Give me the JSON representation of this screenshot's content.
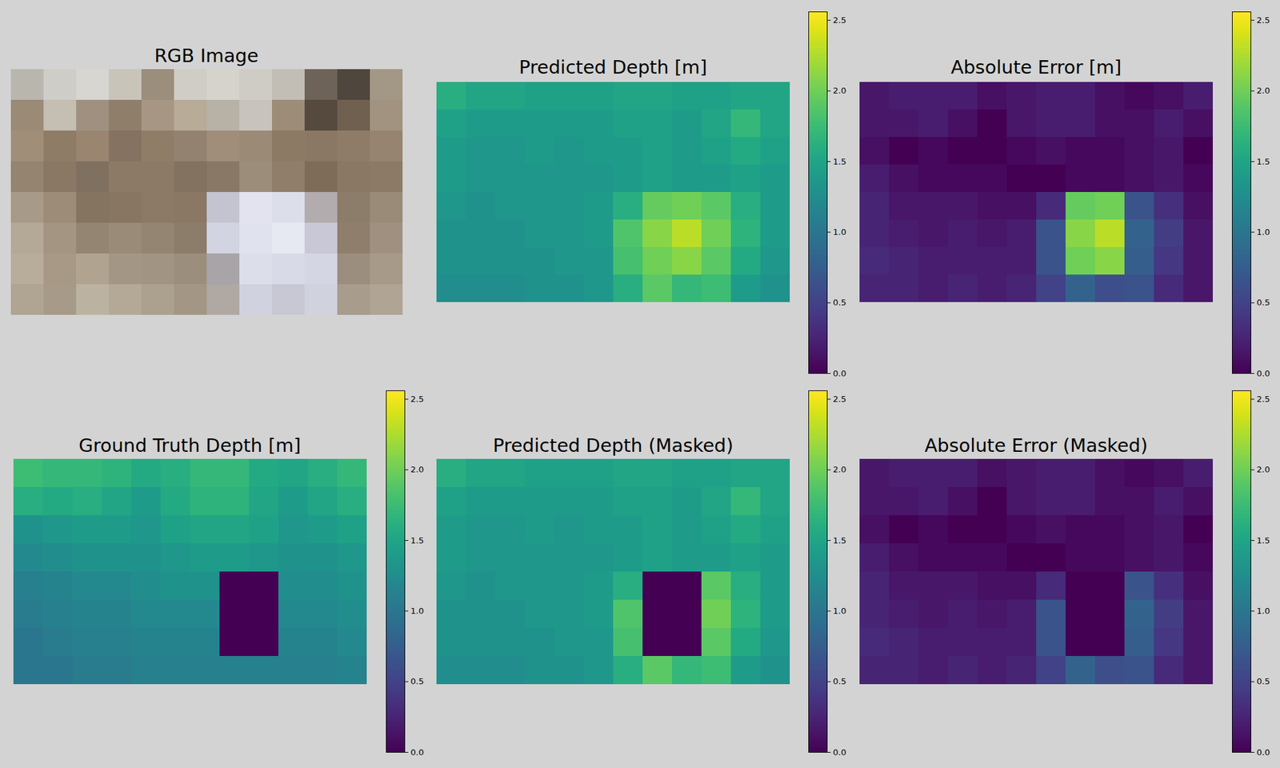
{
  "chart_data": [
    {
      "type": "image",
      "title": "RGB Image",
      "pixels": [
        [
          "#b9b6ae",
          "#cfcdc7",
          "#d8d6d0",
          "#c9c4ba",
          "#9c8e7c",
          "#d0cdc6",
          "#d5d3cc",
          "#cfccc5",
          "#c2beb6",
          "#6e6358",
          "#4f463d",
          "#a39886"
        ],
        [
          "#9a8a76",
          "#c4beb3",
          "#a09080",
          "#8e7e6a",
          "#a89684",
          "#b8ab98",
          "#b8b1a6",
          "#c8c4bd",
          "#9c8c78",
          "#56493e",
          "#6f6050",
          "#a29380"
        ],
        [
          "#a08e78",
          "#8e7c66",
          "#9a8670",
          "#857260",
          "#8f7d68",
          "#948270",
          "#a08e7a",
          "#9a8a76",
          "#8c7a64",
          "#8a7864",
          "#8e7c68",
          "#968470"
        ],
        [
          "#948470",
          "#8a7864",
          "#807060",
          "#8c7a66",
          "#8c7a66",
          "#847260",
          "#8a7866",
          "#9c8c7a",
          "#907e6a",
          "#7e6c58",
          "#8a7864",
          "#8c7a66"
        ],
        [
          "#a89a88",
          "#9c8c78",
          "#857460",
          "#887662",
          "#8c7a66",
          "#8a7864",
          "#c4c4d0",
          "#e2e3ee",
          "#dcdeea",
          "#b2acae",
          "#8c7c6a",
          "#9a8a78"
        ],
        [
          "#b4a896",
          "#a49482",
          "#948472",
          "#9a8a78",
          "#948472",
          "#8c7c6a",
          "#d2d4e2",
          "#e0e2ee",
          "#e6e8f2",
          "#c8c8d6",
          "#907e6c",
          "#a09080"
        ],
        [
          "#b8ac9a",
          "#a89886",
          "#b0a490",
          "#a49684",
          "#a29482",
          "#9c8e7c",
          "#a8a4a8",
          "#dcdeea",
          "#d8dae8",
          "#d4d6e4",
          "#9c8e7e",
          "#a89a88"
        ],
        [
          "#b0a492",
          "#a89a88",
          "#bcb2a2",
          "#b4a896",
          "#aca08e",
          "#a49684",
          "#b0a8a2",
          "#d0d2e0",
          "#c8c8d4",
          "#d0d2de",
          "#a89c8c",
          "#b0a494"
        ]
      ]
    },
    {
      "type": "heatmap",
      "title": "Predicted Depth [m]",
      "cells": [
        [
          1.6,
          1.5,
          1.5,
          1.45,
          1.45,
          1.45,
          1.5,
          1.5,
          1.45,
          1.45,
          1.5,
          1.5
        ],
        [
          1.45,
          1.4,
          1.4,
          1.4,
          1.4,
          1.4,
          1.45,
          1.45,
          1.4,
          1.5,
          1.7,
          1.5
        ],
        [
          1.4,
          1.35,
          1.35,
          1.4,
          1.35,
          1.4,
          1.4,
          1.45,
          1.4,
          1.45,
          1.55,
          1.45
        ],
        [
          1.4,
          1.35,
          1.35,
          1.35,
          1.35,
          1.35,
          1.4,
          1.45,
          1.4,
          1.4,
          1.45,
          1.4
        ],
        [
          1.35,
          1.3,
          1.35,
          1.35,
          1.35,
          1.4,
          1.6,
          1.95,
          2.0,
          1.9,
          1.6,
          1.4
        ],
        [
          1.3,
          1.3,
          1.3,
          1.35,
          1.35,
          1.4,
          1.85,
          2.1,
          2.3,
          2.0,
          1.65,
          1.4
        ],
        [
          1.3,
          1.3,
          1.3,
          1.3,
          1.35,
          1.35,
          1.8,
          2.0,
          2.1,
          1.9,
          1.55,
          1.35
        ],
        [
          1.25,
          1.25,
          1.25,
          1.3,
          1.3,
          1.35,
          1.6,
          1.9,
          1.7,
          1.75,
          1.4,
          1.3
        ]
      ],
      "colorbar": {
        "range": [
          0,
          2.56
        ],
        "ticks": [
          {
            "value": 0,
            "label": "0.0"
          },
          {
            "value": 0.5,
            "label": "0.5"
          },
          {
            "value": 1,
            "label": "1.0"
          },
          {
            "value": 1.5,
            "label": "1.5"
          },
          {
            "value": 2,
            "label": "2.0"
          },
          {
            "value": 2.5,
            "label": "2.5"
          }
        ]
      }
    },
    {
      "type": "heatmap",
      "title": "Absolute Error [m]",
      "cells": [
        [
          0.15,
          0.2,
          0.2,
          0.2,
          0.1,
          0.15,
          0.2,
          0.2,
          0.1,
          0.05,
          0.1,
          0.2
        ],
        [
          0.15,
          0.15,
          0.2,
          0.1,
          0.0,
          0.15,
          0.2,
          0.2,
          0.1,
          0.1,
          0.2,
          0.1
        ],
        [
          0.1,
          0.0,
          0.05,
          0.0,
          0.0,
          0.05,
          0.1,
          0.05,
          0.05,
          0.1,
          0.15,
          0.0
        ],
        [
          0.2,
          0.1,
          0.05,
          0.05,
          0.05,
          0.0,
          0.0,
          0.05,
          0.05,
          0.1,
          0.15,
          0.05
        ],
        [
          0.25,
          0.15,
          0.15,
          0.15,
          0.1,
          0.1,
          0.3,
          1.95,
          2.0,
          0.65,
          0.35,
          0.1
        ],
        [
          0.25,
          0.2,
          0.15,
          0.2,
          0.15,
          0.2,
          0.65,
          2.1,
          2.3,
          0.8,
          0.45,
          0.15
        ],
        [
          0.3,
          0.25,
          0.2,
          0.2,
          0.2,
          0.2,
          0.65,
          2.0,
          2.1,
          0.75,
          0.4,
          0.15
        ],
        [
          0.25,
          0.25,
          0.2,
          0.25,
          0.2,
          0.25,
          0.5,
          0.8,
          0.6,
          0.65,
          0.3,
          0.15
        ]
      ],
      "colorbar": {
        "range": [
          0,
          2.56
        ],
        "ticks": [
          {
            "value": 0,
            "label": "0.0"
          },
          {
            "value": 0.5,
            "label": "0.5"
          },
          {
            "value": 1,
            "label": "1.0"
          },
          {
            "value": 1.5,
            "label": "1.5"
          },
          {
            "value": 2,
            "label": "2.0"
          },
          {
            "value": 2.5,
            "label": "2.5"
          }
        ]
      }
    },
    {
      "type": "heatmap",
      "title": "Ground Truth Depth [m]",
      "cells": [
        [
          1.75,
          1.7,
          1.7,
          1.65,
          1.55,
          1.6,
          1.7,
          1.7,
          1.55,
          1.5,
          1.6,
          1.7
        ],
        [
          1.6,
          1.55,
          1.6,
          1.5,
          1.4,
          1.55,
          1.65,
          1.65,
          1.5,
          1.4,
          1.5,
          1.6
        ],
        [
          1.3,
          1.35,
          1.4,
          1.4,
          1.35,
          1.45,
          1.5,
          1.5,
          1.45,
          1.35,
          1.4,
          1.45
        ],
        [
          1.2,
          1.25,
          1.3,
          1.3,
          1.3,
          1.35,
          1.4,
          1.4,
          1.35,
          1.3,
          1.3,
          1.35
        ],
        [
          1.1,
          1.15,
          1.2,
          1.2,
          1.25,
          1.3,
          1.3,
          0,
          0,
          1.25,
          1.25,
          1.3
        ],
        [
          1.05,
          1.1,
          1.15,
          1.15,
          1.2,
          1.2,
          1.2,
          0,
          0,
          1.2,
          1.2,
          1.25
        ],
        [
          1.0,
          1.05,
          1.1,
          1.1,
          1.15,
          1.15,
          1.15,
          0,
          0,
          1.15,
          1.15,
          1.2
        ],
        [
          1.0,
          1.0,
          1.05,
          1.05,
          1.1,
          1.1,
          1.1,
          1.1,
          1.1,
          1.1,
          1.1,
          1.15
        ]
      ],
      "colorbar": {
        "range": [
          0,
          2.56
        ],
        "ticks": [
          {
            "value": 0,
            "label": "0.0"
          },
          {
            "value": 0.5,
            "label": "0.5"
          },
          {
            "value": 1,
            "label": "1.0"
          },
          {
            "value": 1.5,
            "label": "1.5"
          },
          {
            "value": 2,
            "label": "2.0"
          },
          {
            "value": 2.5,
            "label": "2.5"
          }
        ]
      }
    },
    {
      "type": "heatmap",
      "title": "Predicted Depth (Masked)",
      "cells": [
        [
          1.6,
          1.5,
          1.5,
          1.45,
          1.45,
          1.45,
          1.5,
          1.5,
          1.45,
          1.45,
          1.5,
          1.5
        ],
        [
          1.45,
          1.4,
          1.4,
          1.4,
          1.4,
          1.4,
          1.45,
          1.45,
          1.4,
          1.5,
          1.7,
          1.5
        ],
        [
          1.4,
          1.35,
          1.35,
          1.4,
          1.35,
          1.4,
          1.4,
          1.45,
          1.4,
          1.45,
          1.55,
          1.45
        ],
        [
          1.4,
          1.35,
          1.35,
          1.35,
          1.35,
          1.35,
          1.4,
          1.45,
          1.4,
          1.4,
          1.45,
          1.4
        ],
        [
          1.35,
          1.3,
          1.35,
          1.35,
          1.35,
          1.4,
          1.6,
          0,
          0,
          1.9,
          1.6,
          1.4
        ],
        [
          1.3,
          1.3,
          1.3,
          1.35,
          1.35,
          1.4,
          1.85,
          0,
          0,
          2.0,
          1.65,
          1.4
        ],
        [
          1.3,
          1.3,
          1.3,
          1.3,
          1.35,
          1.35,
          1.8,
          0,
          0,
          1.9,
          1.55,
          1.35
        ],
        [
          1.25,
          1.25,
          1.25,
          1.3,
          1.3,
          1.35,
          1.6,
          1.9,
          1.7,
          1.75,
          1.4,
          1.3
        ]
      ],
      "colorbar": {
        "range": [
          0,
          2.56
        ],
        "ticks": [
          {
            "value": 0,
            "label": "0.0"
          },
          {
            "value": 0.5,
            "label": "0.5"
          },
          {
            "value": 1,
            "label": "1.0"
          },
          {
            "value": 1.5,
            "label": "1.5"
          },
          {
            "value": 2,
            "label": "2.0"
          },
          {
            "value": 2.5,
            "label": "2.5"
          }
        ]
      }
    },
    {
      "type": "heatmap",
      "title": "Absolute Error (Masked)",
      "cells": [
        [
          0.15,
          0.2,
          0.2,
          0.2,
          0.1,
          0.15,
          0.2,
          0.2,
          0.1,
          0.05,
          0.1,
          0.2
        ],
        [
          0.15,
          0.15,
          0.2,
          0.1,
          0.0,
          0.15,
          0.2,
          0.2,
          0.1,
          0.1,
          0.2,
          0.1
        ],
        [
          0.1,
          0.0,
          0.05,
          0.0,
          0.0,
          0.05,
          0.1,
          0.05,
          0.05,
          0.1,
          0.15,
          0.0
        ],
        [
          0.2,
          0.1,
          0.05,
          0.05,
          0.05,
          0.0,
          0.0,
          0.05,
          0.05,
          0.1,
          0.15,
          0.05
        ],
        [
          0.25,
          0.15,
          0.15,
          0.15,
          0.1,
          0.1,
          0.3,
          0,
          0,
          0.65,
          0.35,
          0.1
        ],
        [
          0.25,
          0.2,
          0.15,
          0.2,
          0.15,
          0.2,
          0.65,
          0,
          0,
          0.8,
          0.45,
          0.15
        ],
        [
          0.3,
          0.25,
          0.2,
          0.2,
          0.2,
          0.2,
          0.65,
          0,
          0,
          0.75,
          0.4,
          0.15
        ],
        [
          0.25,
          0.25,
          0.2,
          0.25,
          0.2,
          0.25,
          0.5,
          0.8,
          0.6,
          0.65,
          0.3,
          0.15
        ]
      ],
      "colorbar": {
        "range": [
          0,
          2.56
        ],
        "ticks": [
          {
            "value": 0,
            "label": "0.0"
          },
          {
            "value": 0.5,
            "label": "0.5"
          },
          {
            "value": 1,
            "label": "1.0"
          },
          {
            "value": 1.5,
            "label": "1.5"
          },
          {
            "value": 2,
            "label": "2.0"
          },
          {
            "value": 2.5,
            "label": "2.5"
          }
        ]
      }
    }
  ]
}
